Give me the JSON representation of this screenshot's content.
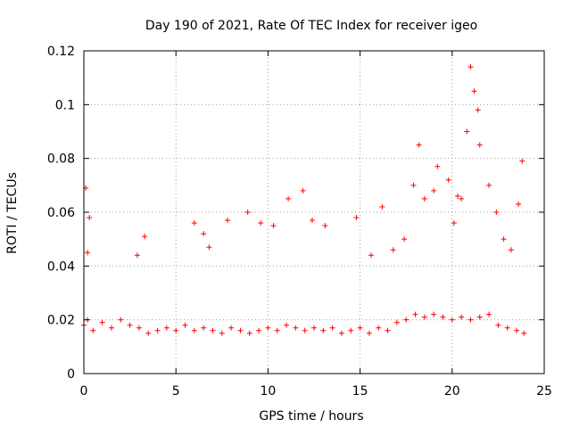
{
  "chart_data": {
    "type": "scatter",
    "title": "Day 190 of 2021, Rate Of TEC Index for receiver igeo",
    "xlabel": "GPS time / hours",
    "ylabel": "ROTI / TECUs",
    "xlim": [
      0,
      25
    ],
    "ylim": [
      0,
      0.12
    ],
    "x_ticks": [
      0,
      5,
      10,
      15,
      20,
      25
    ],
    "x_tick_labels": [
      "0",
      "5",
      "10",
      "15",
      "20",
      "25"
    ],
    "y_ticks": [
      0,
      0.02,
      0.04,
      0.06,
      0.08,
      0.1,
      0.12
    ],
    "y_tick_labels": [
      "0",
      "0.02",
      "0.04",
      "0.06",
      "0.08",
      "0.1",
      "0.12"
    ],
    "grid": true,
    "marker": "+",
    "series_color": "#ff0000",
    "series": [
      {
        "x": [
          0.0,
          0.2,
          0.5,
          1.0,
          1.5,
          2.0,
          2.5,
          3.0,
          3.5,
          4.0,
          4.5,
          5.0,
          5.5,
          6.0,
          6.5,
          7.0,
          7.5,
          8.0,
          8.5,
          9.0,
          9.5,
          10.0,
          10.5,
          11.0,
          11.5,
          12.0,
          12.5,
          13.0,
          13.5,
          14.0,
          14.5,
          15.0,
          15.5,
          16.0,
          16.5,
          17.0,
          17.5,
          18.0,
          18.5,
          19.0,
          19.5,
          20.0,
          20.5,
          21.0,
          21.5,
          22.0,
          22.5,
          23.0,
          23.5,
          23.9,
          0.1,
          0.3,
          2.9,
          6.0,
          6.5,
          7.8,
          8.9,
          9.6,
          11.1,
          11.9,
          12.4,
          14.8,
          16.2,
          16.8,
          17.9,
          18.2,
          18.5,
          19.2,
          19.8,
          20.1,
          20.5,
          20.8,
          21.0,
          21.2,
          21.4,
          21.5,
          22.0,
          22.8,
          23.6,
          23.8,
          0.2,
          3.3,
          6.8,
          10.3,
          13.1,
          15.6,
          17.4,
          19.0,
          20.3,
          22.4,
          23.2
        ],
        "y": [
          0.018,
          0.02,
          0.016,
          0.019,
          0.017,
          0.02,
          0.018,
          0.017,
          0.015,
          0.016,
          0.017,
          0.016,
          0.018,
          0.016,
          0.017,
          0.016,
          0.015,
          0.017,
          0.016,
          0.015,
          0.016,
          0.017,
          0.016,
          0.018,
          0.017,
          0.016,
          0.017,
          0.016,
          0.017,
          0.015,
          0.016,
          0.017,
          0.015,
          0.017,
          0.016,
          0.019,
          0.02,
          0.022,
          0.021,
          0.022,
          0.021,
          0.02,
          0.021,
          0.02,
          0.021,
          0.022,
          0.018,
          0.017,
          0.016,
          0.015,
          0.069,
          0.058,
          0.044,
          0.056,
          0.052,
          0.057,
          0.06,
          0.056,
          0.065,
          0.068,
          0.057,
          0.058,
          0.062,
          0.046,
          0.07,
          0.085,
          0.065,
          0.077,
          0.072,
          0.056,
          0.065,
          0.09,
          0.114,
          0.105,
          0.098,
          0.085,
          0.07,
          0.05,
          0.063,
          0.079,
          0.045,
          0.051,
          0.047,
          0.055,
          0.055,
          0.044,
          0.05,
          0.068,
          0.066,
          0.06,
          0.046
        ]
      }
    ]
  }
}
